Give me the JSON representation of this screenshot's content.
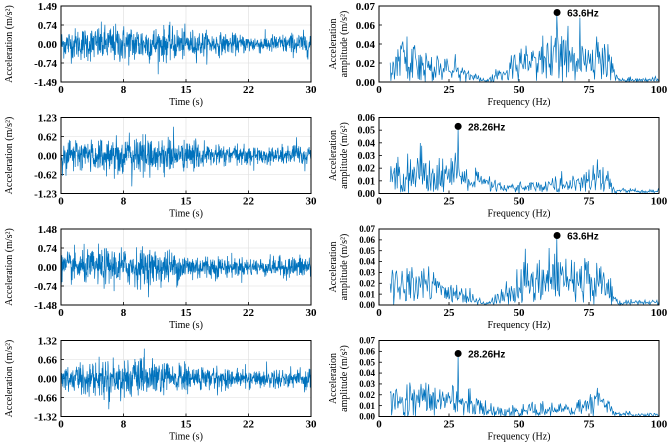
{
  "chart_data": [
    {
      "type": "line",
      "panel": "time-1",
      "xlabel": "Time (s)",
      "ylabel": "Acceleration (m/s²)",
      "xlim": [
        0,
        30
      ],
      "xticks": [
        "0",
        "8",
        "15",
        "22",
        "30"
      ],
      "ylim": [
        -1.49,
        1.49
      ],
      "yticks": [
        "1.49",
        "0.74",
        "0.00",
        "-0.74",
        "-1.49"
      ],
      "grid": true,
      "amplitude_rms": 0.32,
      "color": "#0072BD"
    },
    {
      "type": "line",
      "panel": "spectrum-1",
      "xlabel": "Frequency (Hz)",
      "ylabel": [
        "Acceleration",
        "amplitude (m/s²)"
      ],
      "xlim": [
        0,
        100
      ],
      "xticks": [
        "0",
        "25",
        "50",
        "75",
        "100"
      ],
      "ylim": [
        0,
        0.07
      ],
      "yticks": [
        "0.07",
        "0.06",
        "0.04",
        "0.02",
        "0.00"
      ],
      "grid": false,
      "envelope": [
        [
          4,
          0.025
        ],
        [
          10,
          0.028
        ],
        [
          20,
          0.018
        ],
        [
          30,
          0.012
        ],
        [
          38,
          0.001
        ],
        [
          45,
          0.012
        ],
        [
          55,
          0.025
        ],
        [
          65,
          0.03
        ],
        [
          80,
          0.028
        ],
        [
          84,
          0.01
        ],
        [
          86,
          0.003
        ],
        [
          100,
          0.003
        ]
      ],
      "peak": {
        "x": 63.6,
        "y": 0.064,
        "label": "63.6Hz"
      },
      "color": "#0072BD"
    },
    {
      "type": "line",
      "panel": "time-2",
      "xlabel": "Time (s)",
      "ylabel": "Acceleration (m/s²)",
      "xlim": [
        0,
        30
      ],
      "xticks": [
        "0",
        "8",
        "15",
        "22",
        "30"
      ],
      "ylim": [
        -1.23,
        1.23
      ],
      "yticks": [
        "1.23",
        "0.62",
        "0.00",
        "-0.62",
        "-1.23"
      ],
      "grid": true,
      "amplitude_rms": 0.27,
      "color": "#0072BD"
    },
    {
      "type": "line",
      "panel": "spectrum-2",
      "xlabel": "Frequency (Hz)",
      "ylabel": [
        "Acceleration",
        "amplitude (m/s²)"
      ],
      "xlim": [
        0,
        100
      ],
      "xticks": [
        "0",
        "25",
        "50",
        "75",
        "100"
      ],
      "ylim": [
        0,
        0.06
      ],
      "yticks": [
        "0.06",
        "0.05",
        "0.04",
        "0.03",
        "0.02",
        "0.01",
        "0.00"
      ],
      "grid": false,
      "envelope": [
        [
          4,
          0.018
        ],
        [
          10,
          0.022
        ],
        [
          25,
          0.02
        ],
        [
          35,
          0.012
        ],
        [
          45,
          0.005
        ],
        [
          55,
          0.007
        ],
        [
          70,
          0.01
        ],
        [
          78,
          0.016
        ],
        [
          82,
          0.012
        ],
        [
          84,
          0.003
        ],
        [
          100,
          0.002
        ]
      ],
      "peak": {
        "x": 28.26,
        "y": 0.053,
        "label": "28.26Hz"
      },
      "color": "#0072BD"
    },
    {
      "type": "line",
      "panel": "time-3",
      "xlabel": "Time (s)",
      "ylabel": "Acceleration (m/s²)",
      "xlim": [
        0,
        30
      ],
      "xticks": [
        "0",
        "8",
        "15",
        "22",
        "30"
      ],
      "ylim": [
        -1.48,
        1.48
      ],
      "yticks": [
        "1.48",
        "0.74",
        "0.00",
        "-0.74",
        "-1.48"
      ],
      "grid": true,
      "amplitude_rms": 0.32,
      "color": "#0072BD"
    },
    {
      "type": "line",
      "panel": "spectrum-3",
      "xlabel": "Frequency (Hz)",
      "ylabel": [
        "Acceleration",
        "amplitude (m/s²)"
      ],
      "xlim": [
        0,
        100
      ],
      "xticks": [
        "0",
        "25",
        "50",
        "75",
        "100"
      ],
      "ylim": [
        0,
        0.07
      ],
      "yticks": [
        "0.07",
        "0.06",
        "0.05",
        "0.04",
        "0.03",
        "0.02",
        "0.01",
        "0.00"
      ],
      "grid": false,
      "envelope": [
        [
          4,
          0.022
        ],
        [
          10,
          0.028
        ],
        [
          20,
          0.02
        ],
        [
          30,
          0.012
        ],
        [
          38,
          0.001
        ],
        [
          45,
          0.012
        ],
        [
          55,
          0.025
        ],
        [
          65,
          0.03
        ],
        [
          80,
          0.028
        ],
        [
          84,
          0.01
        ],
        [
          86,
          0.003
        ],
        [
          100,
          0.003
        ]
      ],
      "peak": {
        "x": 63.6,
        "y": 0.064,
        "label": "63.6Hz"
      },
      "color": "#0072BD"
    },
    {
      "type": "line",
      "panel": "time-4",
      "xlabel": "Time (s)",
      "ylabel": "Acceleration (m/s²)",
      "xlim": [
        0,
        30
      ],
      "xticks": [
        "0",
        "8",
        "15",
        "22",
        "30"
      ],
      "ylim": [
        -1.32,
        1.32
      ],
      "yticks": [
        "1.32",
        "0.66",
        "0.00",
        "-0.66",
        "-1.32"
      ],
      "grid": true,
      "amplitude_rms": 0.28,
      "color": "#0072BD"
    },
    {
      "type": "line",
      "panel": "spectrum-4",
      "xlabel": "Frequency (Hz)",
      "ylabel": [
        "Acceleration",
        "amplitude (m/s²)"
      ],
      "xlim": [
        0,
        100
      ],
      "xticks": [
        "0",
        "25",
        "50",
        "75",
        "100"
      ],
      "ylim": [
        0,
        0.07
      ],
      "yticks": [
        "0.07",
        "0.06",
        "0.05",
        "0.04",
        "0.03",
        "0.02",
        "0.01",
        "0.00"
      ],
      "grid": false,
      "envelope": [
        [
          4,
          0.018
        ],
        [
          10,
          0.022
        ],
        [
          25,
          0.02
        ],
        [
          35,
          0.012
        ],
        [
          45,
          0.005
        ],
        [
          55,
          0.007
        ],
        [
          70,
          0.01
        ],
        [
          78,
          0.016
        ],
        [
          82,
          0.012
        ],
        [
          84,
          0.003
        ],
        [
          100,
          0.002
        ]
      ],
      "peak": {
        "x": 28.26,
        "y": 0.058,
        "label": "28.26Hz"
      },
      "color": "#0072BD"
    }
  ]
}
